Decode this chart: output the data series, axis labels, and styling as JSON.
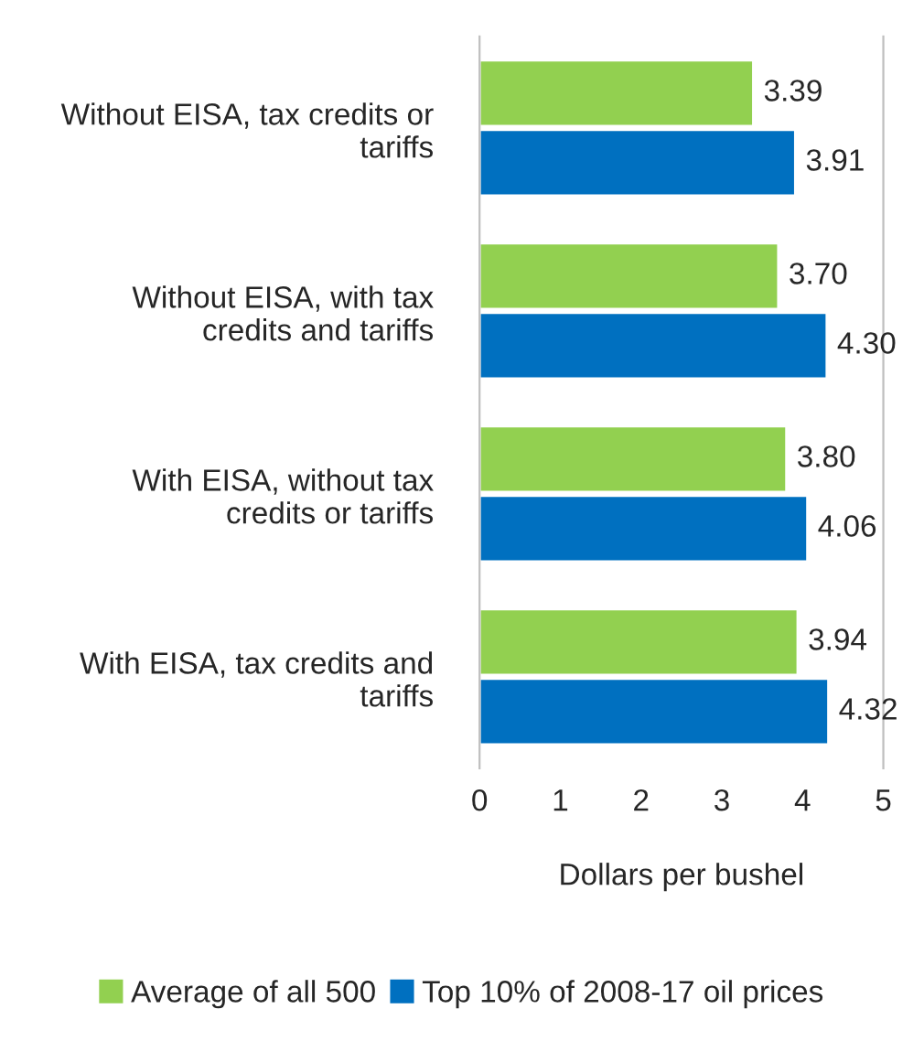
{
  "chart_data": {
    "type": "bar",
    "orientation": "horizontal",
    "categories": [
      "Without EISA, tax credits or tariffs",
      "Without EISA, with tax credits and tariffs",
      "With EISA, without tax credits or tariffs",
      "With EISA, tax credits and tariffs"
    ],
    "series": [
      {
        "name": "Average of all 500",
        "color": "#92d050",
        "values": [
          3.39,
          3.7,
          3.8,
          3.94
        ],
        "value_labels": [
          "3.39",
          "3.70",
          "3.80",
          "3.94"
        ]
      },
      {
        "name": "Top 10% of 2008-17 oil prices",
        "color": "#0070c0",
        "values": [
          3.91,
          4.3,
          4.06,
          4.32
        ],
        "value_labels": [
          "3.91",
          "4.30",
          "4.06",
          "4.32"
        ]
      }
    ],
    "xlabel": "Dollars per bushel",
    "xlim": [
      0,
      5
    ],
    "xticks": [
      0,
      1,
      2,
      3,
      4,
      5
    ],
    "grid": false,
    "legend": "bottom"
  }
}
